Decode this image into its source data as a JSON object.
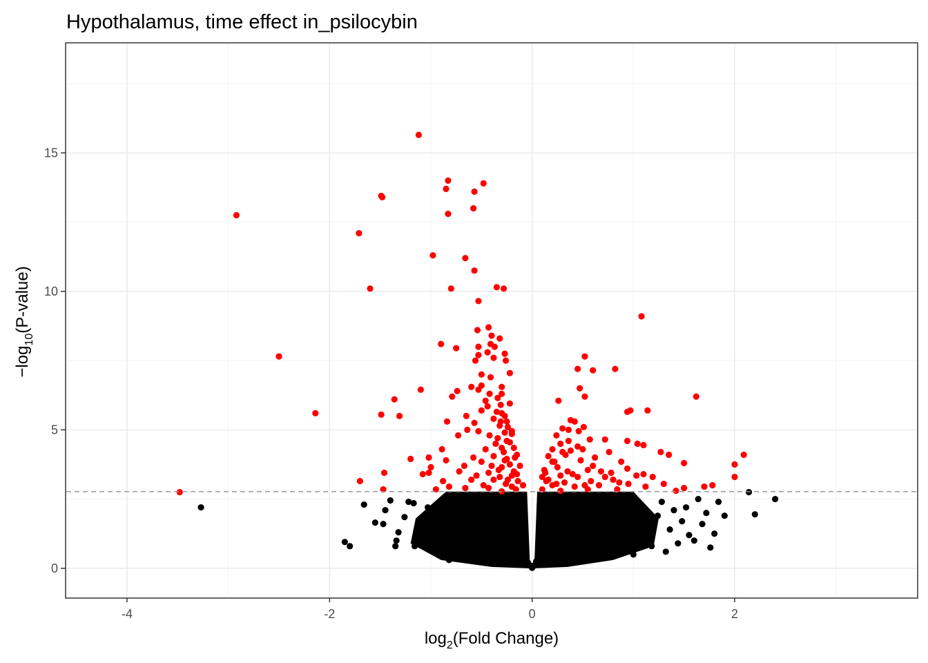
{
  "chart_data": {
    "type": "scatter",
    "title": "Hypothalamus, time effect in_psilocybin",
    "xlabel": {
      "prefix": "log",
      "subscript": "2",
      "suffix": "(Fold Change)"
    },
    "ylabel": {
      "prefix": "−log",
      "subscript": "10",
      "suffix": "(P-value)"
    },
    "xlim": [
      -4.6,
      3.8
    ],
    "ylim": [
      -1.05,
      18.95
    ],
    "x_ticks": [
      {
        "value": -4,
        "label": "-4"
      },
      {
        "value": -2,
        "label": "-2"
      },
      {
        "value": 0,
        "label": "0"
      },
      {
        "value": 2,
        "label": "2"
      }
    ],
    "y_ticks": [
      {
        "value": 0,
        "label": "0"
      },
      {
        "value": 5,
        "label": "5"
      },
      {
        "value": 10,
        "label": "10"
      },
      {
        "value": 15,
        "label": "15"
      }
    ],
    "grid": true,
    "legend": "none",
    "significance_threshold": {
      "y": 2.77,
      "style": "dashed",
      "color": "#999999"
    },
    "colors": {
      "significant": "#ff0000",
      "not_significant": "#000000"
    },
    "series": [
      {
        "color": "#ff0000",
        "points": [
          [
            -1.12,
            15.65
          ],
          [
            -0.83,
            14.0
          ],
          [
            -0.85,
            13.7
          ],
          [
            -0.48,
            13.9
          ],
          [
            -0.57,
            13.6
          ],
          [
            -1.49,
            13.45
          ],
          [
            -1.48,
            13.4
          ],
          [
            -2.92,
            12.75
          ],
          [
            -0.58,
            13.0
          ],
          [
            -0.83,
            12.8
          ],
          [
            -1.71,
            12.1
          ],
          [
            -0.98,
            11.3
          ],
          [
            -0.66,
            11.2
          ],
          [
            -0.57,
            10.75
          ],
          [
            -1.6,
            10.1
          ],
          [
            -0.8,
            10.1
          ],
          [
            -0.35,
            10.15
          ],
          [
            -0.28,
            10.1
          ],
          [
            -0.53,
            9.65
          ],
          [
            1.08,
            9.1
          ],
          [
            -0.43,
            8.7
          ],
          [
            -0.54,
            8.6
          ],
          [
            -0.4,
            8.4
          ],
          [
            -0.32,
            8.3
          ],
          [
            -0.9,
            8.1
          ],
          [
            -0.41,
            8.1
          ],
          [
            -0.53,
            8.0
          ],
          [
            -0.37,
            8.0
          ],
          [
            -0.75,
            7.95
          ],
          [
            -0.44,
            7.8
          ],
          [
            -0.27,
            7.75
          ],
          [
            -0.53,
            7.7
          ],
          [
            -0.38,
            7.6
          ],
          [
            -2.5,
            7.65
          ],
          [
            0.52,
            7.65
          ],
          [
            -0.56,
            7.5
          ],
          [
            -0.26,
            7.5
          ],
          [
            0.45,
            7.2
          ],
          [
            0.6,
            7.15
          ],
          [
            0.82,
            7.2
          ],
          [
            -0.5,
            7.0
          ],
          [
            -0.41,
            6.9
          ],
          [
            -0.22,
            7.05
          ],
          [
            -0.5,
            6.6
          ],
          [
            -0.6,
            6.55
          ],
          [
            -0.3,
            6.55
          ],
          [
            -1.1,
            6.45
          ],
          [
            -0.74,
            6.4
          ],
          [
            -0.53,
            6.45
          ],
          [
            0.47,
            6.5
          ],
          [
            -0.42,
            6.3
          ],
          [
            -0.3,
            6.3
          ],
          [
            -0.79,
            6.2
          ],
          [
            0.52,
            6.2
          ],
          [
            1.62,
            6.2
          ],
          [
            -1.36,
            6.1
          ],
          [
            -0.46,
            6.05
          ],
          [
            -0.34,
            6.15
          ],
          [
            0.26,
            6.05
          ],
          [
            -0.44,
            5.85
          ],
          [
            -0.31,
            5.9
          ],
          [
            -0.5,
            5.7
          ],
          [
            -0.35,
            5.65
          ],
          [
            0.94,
            5.65
          ],
          [
            0.97,
            5.7
          ],
          [
            1.14,
            5.7
          ],
          [
            -1.49,
            5.55
          ],
          [
            -1.31,
            5.5
          ],
          [
            -0.65,
            5.5
          ],
          [
            -0.38,
            5.4
          ],
          [
            -0.27,
            5.5
          ],
          [
            -2.14,
            5.6
          ],
          [
            -0.84,
            5.3
          ],
          [
            -0.57,
            5.25
          ],
          [
            -0.31,
            5.3
          ],
          [
            0.38,
            5.35
          ],
          [
            0.42,
            5.3
          ],
          [
            -0.32,
            5.15
          ],
          [
            -0.24,
            5.1
          ],
          [
            0.3,
            5.05
          ],
          [
            0.51,
            5.1
          ],
          [
            -0.64,
            5.0
          ],
          [
            -0.53,
            4.95
          ],
          [
            -0.27,
            4.9
          ],
          [
            0.36,
            5.0
          ],
          [
            0.46,
            4.95
          ],
          [
            -0.73,
            4.8
          ],
          [
            -0.42,
            4.8
          ],
          [
            -0.2,
            4.85
          ],
          [
            0.24,
            4.8
          ],
          [
            0.57,
            4.65
          ],
          [
            0.72,
            4.65
          ],
          [
            0.94,
            4.6
          ],
          [
            1.04,
            4.5
          ],
          [
            1.1,
            4.45
          ],
          [
            -0.36,
            4.5
          ],
          [
            -0.22,
            4.55
          ],
          [
            0.28,
            4.5
          ],
          [
            0.45,
            4.4
          ],
          [
            -0.89,
            4.3
          ],
          [
            -0.46,
            4.3
          ],
          [
            -0.3,
            4.35
          ],
          [
            0.2,
            4.3
          ],
          [
            0.38,
            4.25
          ],
          [
            0.76,
            4.2
          ],
          [
            1.27,
            4.2
          ],
          [
            1.35,
            4.1
          ],
          [
            2.09,
            4.1
          ],
          [
            -1.02,
            4.0
          ],
          [
            -0.58,
            4.0
          ],
          [
            -0.38,
            4.05
          ],
          [
            -0.17,
            4.0
          ],
          [
            0.16,
            4.05
          ],
          [
            0.33,
            4.1
          ],
          [
            0.62,
            4.0
          ],
          [
            -1.2,
            3.95
          ],
          [
            -0.85,
            3.9
          ],
          [
            -0.5,
            3.85
          ],
          [
            -0.27,
            3.9
          ],
          [
            0.2,
            3.85
          ],
          [
            0.48,
            3.9
          ],
          [
            0.88,
            3.85
          ],
          [
            1.5,
            3.8
          ],
          [
            2.0,
            3.75
          ],
          [
            -1.0,
            3.65
          ],
          [
            -0.67,
            3.7
          ],
          [
            -0.4,
            3.7
          ],
          [
            -0.22,
            3.75
          ],
          [
            0.25,
            3.65
          ],
          [
            0.6,
            3.7
          ],
          [
            0.94,
            3.6
          ],
          [
            -1.02,
            3.45
          ],
          [
            -0.72,
            3.5
          ],
          [
            -0.43,
            3.45
          ],
          [
            -0.33,
            3.55
          ],
          [
            -0.18,
            3.5
          ],
          [
            0.13,
            3.45
          ],
          [
            0.35,
            3.5
          ],
          [
            0.55,
            3.55
          ],
          [
            0.78,
            3.45
          ],
          [
            1.1,
            3.4
          ],
          [
            -1.46,
            3.45
          ],
          [
            -1.08,
            3.4
          ],
          [
            -0.55,
            3.35
          ],
          [
            -0.32,
            3.3
          ],
          [
            -0.2,
            3.35
          ],
          [
            0.1,
            3.3
          ],
          [
            0.28,
            3.35
          ],
          [
            0.45,
            3.3
          ],
          [
            0.72,
            3.3
          ],
          [
            1.03,
            3.35
          ],
          [
            1.19,
            3.3
          ],
          [
            2.0,
            3.3
          ],
          [
            -1.7,
            3.15
          ],
          [
            -0.88,
            3.15
          ],
          [
            -0.6,
            3.2
          ],
          [
            -0.38,
            3.2
          ],
          [
            -0.14,
            3.15
          ],
          [
            0.14,
            3.15
          ],
          [
            0.32,
            3.1
          ],
          [
            0.58,
            3.15
          ],
          [
            0.86,
            3.1
          ],
          [
            1.3,
            3.05
          ],
          [
            -0.82,
            2.95
          ],
          [
            -0.48,
            3.0
          ],
          [
            -0.26,
            3.05
          ],
          [
            0.2,
            3.0
          ],
          [
            0.42,
            2.95
          ],
          [
            0.66,
            3.0
          ],
          [
            1.5,
            2.9
          ],
          [
            1.7,
            2.95
          ],
          [
            1.78,
            3.0
          ],
          [
            -1.47,
            2.85
          ],
          [
            -0.95,
            2.85
          ],
          [
            -0.66,
            2.9
          ],
          [
            -0.43,
            2.9
          ],
          [
            -0.16,
            2.85
          ],
          [
            0.1,
            2.85
          ],
          [
            0.55,
            2.85
          ],
          [
            0.84,
            2.85
          ],
          [
            -3.48,
            2.75
          ],
          [
            1.42,
            2.8
          ],
          [
            -0.3,
            2.78
          ],
          [
            0.28,
            2.8
          ],
          [
            -0.22,
            5.95
          ],
          [
            -0.3,
            5.6
          ],
          [
            -0.25,
            5.3
          ],
          [
            -0.2,
            4.95
          ],
          [
            -0.34,
            4.7
          ],
          [
            -0.25,
            4.6
          ],
          [
            -0.18,
            4.35
          ],
          [
            -0.28,
            4.2
          ],
          [
            -0.15,
            4.1
          ],
          [
            -0.25,
            3.95
          ],
          [
            -0.12,
            3.7
          ],
          [
            -0.3,
            3.65
          ],
          [
            -0.15,
            3.4
          ],
          [
            -0.24,
            3.2
          ],
          [
            -0.09,
            3.0
          ],
          [
            -0.2,
            2.95
          ],
          [
            0.12,
            3.55
          ],
          [
            0.22,
            3.85
          ],
          [
            0.3,
            4.2
          ],
          [
            0.36,
            4.6
          ],
          [
            0.5,
            4.3
          ],
          [
            0.16,
            3.2
          ],
          [
            0.24,
            3.05
          ],
          [
            0.4,
            3.4
          ],
          [
            0.52,
            3.0
          ],
          [
            0.68,
            3.5
          ],
          [
            0.8,
            3.2
          ],
          [
            0.95,
            3.05
          ],
          [
            1.12,
            2.95
          ]
        ]
      },
      {
        "color": "#000000",
        "points": [
          [
            -3.27,
            2.2
          ],
          [
            -1.8,
            0.8
          ],
          [
            -1.85,
            0.95
          ],
          [
            -1.66,
            2.3
          ],
          [
            -1.55,
            1.65
          ],
          [
            -1.47,
            1.6
          ],
          [
            -1.45,
            2.1
          ],
          [
            -1.4,
            2.45
          ],
          [
            -1.34,
            1.0
          ],
          [
            -1.32,
            1.3
          ],
          [
            -1.35,
            0.8
          ],
          [
            -1.26,
            1.85
          ],
          [
            -1.22,
            2.4
          ],
          [
            -1.17,
            2.35
          ],
          [
            -1.16,
            0.8
          ],
          [
            -1.1,
            1.15
          ],
          [
            -1.05,
            1.7
          ],
          [
            -1.03,
            2.2
          ],
          [
            -0.98,
            0.95
          ],
          [
            -0.92,
            1.4
          ],
          [
            -0.88,
            2.0
          ],
          [
            -0.84,
            0.65
          ],
          [
            -0.82,
            0.3
          ],
          [
            -0.78,
            1.2
          ],
          [
            -0.72,
            2.4
          ],
          [
            -0.7,
            0.5
          ],
          [
            -0.64,
            1.8
          ],
          [
            -0.6,
            0.9
          ],
          [
            -0.55,
            2.2
          ],
          [
            -0.52,
            0.3
          ],
          [
            -0.46,
            1.5
          ],
          [
            -0.43,
            2.6
          ],
          [
            -0.4,
            0.6
          ],
          [
            -0.35,
            1.1
          ],
          [
            -0.3,
            2.1
          ],
          [
            -0.27,
            0.4
          ],
          [
            -0.22,
            1.6
          ],
          [
            -0.18,
            0.9
          ],
          [
            -0.15,
            2.4
          ],
          [
            -0.12,
            0.3
          ],
          [
            -0.09,
            1.2
          ],
          [
            -0.06,
            0.6
          ],
          [
            -0.04,
            0.2
          ],
          [
            -0.02,
            0.1
          ],
          [
            0.0,
            0.02
          ],
          [
            0.02,
            0.1
          ],
          [
            0.04,
            0.25
          ],
          [
            0.07,
            0.7
          ],
          [
            0.1,
            1.5
          ],
          [
            0.12,
            0.35
          ],
          [
            0.16,
            2.3
          ],
          [
            0.2,
            0.9
          ],
          [
            0.24,
            1.7
          ],
          [
            0.28,
            0.4
          ],
          [
            0.33,
            2.5
          ],
          [
            0.38,
            1.1
          ],
          [
            0.44,
            0.5
          ],
          [
            0.5,
            1.9
          ],
          [
            0.55,
            0.8
          ],
          [
            0.62,
            2.2
          ],
          [
            0.68,
            0.4
          ],
          [
            0.75,
            1.5
          ],
          [
            0.82,
            2.6
          ],
          [
            0.88,
            0.7
          ],
          [
            0.95,
            1.8
          ],
          [
            1.0,
            0.5
          ],
          [
            1.06,
            2.3
          ],
          [
            1.12,
            1.2
          ],
          [
            1.18,
            0.8
          ],
          [
            1.24,
            1.9
          ],
          [
            1.28,
            2.4
          ],
          [
            1.32,
            0.6
          ],
          [
            1.36,
            1.4
          ],
          [
            1.4,
            2.1
          ],
          [
            1.44,
            0.9
          ],
          [
            1.48,
            1.7
          ],
          [
            1.52,
            2.2
          ],
          [
            1.55,
            1.2
          ],
          [
            1.6,
            1.0
          ],
          [
            1.64,
            2.5
          ],
          [
            1.68,
            1.6
          ],
          [
            1.72,
            2.0
          ],
          [
            1.76,
            0.75
          ],
          [
            1.8,
            1.25
          ],
          [
            1.84,
            2.4
          ],
          [
            1.9,
            1.9
          ],
          [
            2.14,
            2.75
          ],
          [
            2.2,
            1.95
          ],
          [
            2.4,
            2.5
          ]
        ]
      }
    ],
    "cloud": {
      "left_x_max": -0.05,
      "left_x_min": -1.2,
      "right_x_min": 0.05,
      "right_x_max": 1.2,
      "y_max": 2.77
    }
  }
}
